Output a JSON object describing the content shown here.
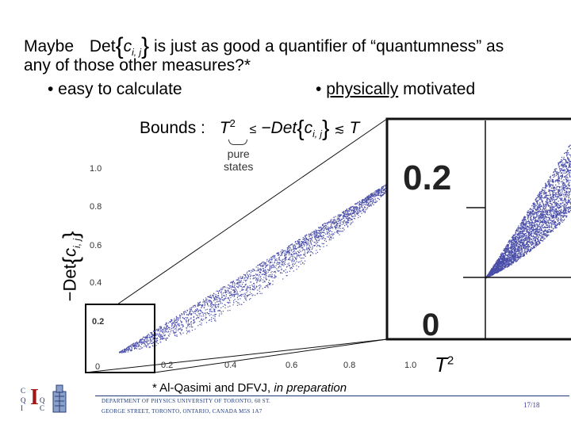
{
  "slide": {
    "line1_prefix": "Maybe",
    "formula_det": "Det",
    "formula_c": "c",
    "formula_sub": "i, j",
    "line1_suffix": "is just as good a quantifier of “quantumness” as",
    "line2": "any of those other measures?*",
    "bullet1": "• easy to calculate",
    "bullet2_prefix": "•",
    "bullet2_underlined": "physically",
    "bullet2_rest": "motivated"
  },
  "bounds": {
    "label": "Bounds :",
    "T": "T",
    "exp": "2",
    "pure": "pure",
    "states": "states",
    "le": "≤",
    "neg_det": "−Det",
    "c": "c",
    "sub": "i, j",
    "lesssim": "≲",
    "T_right": "T"
  },
  "axes": {
    "y_label_det": "−Det",
    "y_label_c": "c",
    "y_label_sub": "i, j",
    "x_label": "T",
    "x_label_exp": "2"
  },
  "chart_data": {
    "type": "scatter",
    "xlabel": "T²",
    "ylabel": "−Det{c_i,j}",
    "xlim": [
      0,
      1.0
    ],
    "ylim": [
      0,
      1.0
    ],
    "x_ticks": [
      "0.2",
      "0.4",
      "0.6",
      "0.8",
      "1.0"
    ],
    "y_ticks": [
      "1.0",
      "0.8",
      "0.6",
      "0.4",
      "0.2",
      "0"
    ],
    "zoom_ticks": [
      "0.2",
      "0"
    ],
    "point_color": "#4a4ea8",
    "upper_bound": "y = x",
    "lower_bound": "y ≈ x^1.6"
  },
  "footnote": {
    "text": "* Al-Qasimi and DFVJ,",
    "italic": "in preparation"
  },
  "footer": {
    "dept_line1": "DEPARTMENT OF PHYSICS  UNIVERSITY OF TORONTO, 60 ST.",
    "dept_line2": "GEORGE STREET, TORONTO, ONTARIO, CANADA M5S 1A7",
    "page": "17/18",
    "logo_letters": [
      "C",
      "Q",
      "Q",
      "I",
      "I",
      "C"
    ]
  },
  "colors": {
    "points": "#4a4ea8",
    "footer_text": "#1e3a7a",
    "page_number": "#3a3a9a"
  }
}
